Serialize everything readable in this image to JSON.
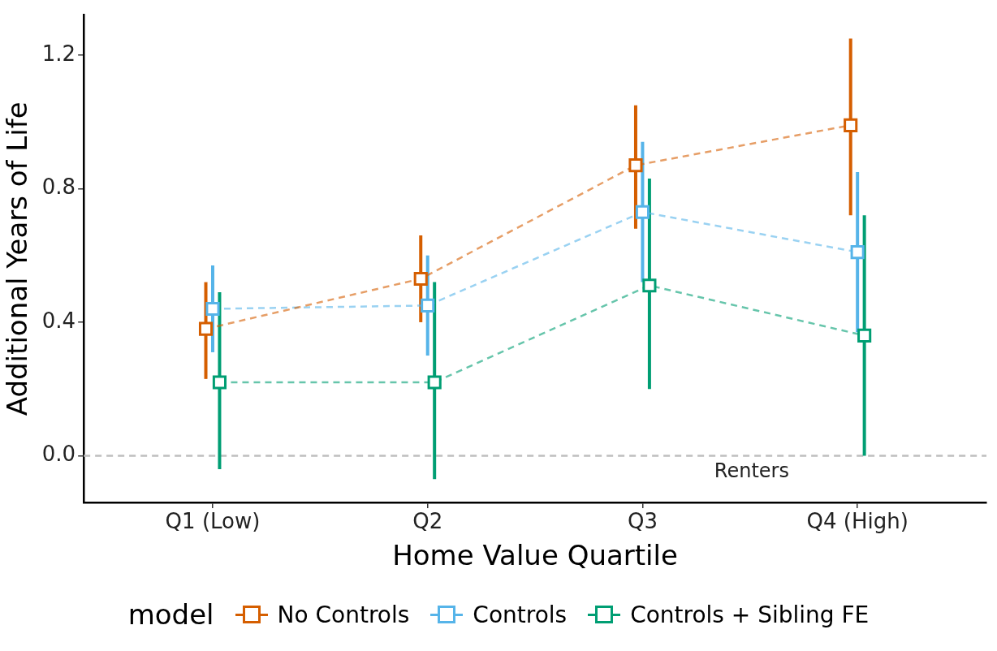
{
  "chart_data": {
    "type": "line",
    "xlabel": "Home Value Quartile",
    "ylabel": "Additional Years of Life",
    "legend_title": "model",
    "categories": [
      "Q1 (Low)",
      "Q2",
      "Q3",
      "Q4 (High)"
    ],
    "series": [
      {
        "name": "No Controls",
        "color": "#d55e00",
        "values": [
          0.38,
          0.53,
          0.87,
          0.99
        ],
        "errors": [
          [
            0.23,
            0.52
          ],
          [
            0.4,
            0.66
          ],
          [
            0.68,
            1.05
          ],
          [
            0.72,
            1.25
          ]
        ]
      },
      {
        "name": "Controls",
        "color": "#56b4e9",
        "values": [
          0.44,
          0.45,
          0.73,
          0.61
        ],
        "errors": [
          [
            0.31,
            0.57
          ],
          [
            0.3,
            0.6
          ],
          [
            0.52,
            0.94
          ],
          [
            0.37,
            0.85
          ]
        ]
      },
      {
        "name": "Controls + Sibling FE",
        "color": "#009e73",
        "values": [
          0.22,
          0.22,
          0.51,
          0.36
        ],
        "errors": [
          [
            -0.04,
            0.49
          ],
          [
            -0.07,
            0.52
          ],
          [
            0.2,
            0.83
          ],
          [
            0.0,
            0.72
          ]
        ]
      }
    ],
    "ylim": [
      -0.14,
      1.32
    ],
    "yticks": [
      {
        "value": 0,
        "label": "0.0"
      },
      {
        "value": 0.4,
        "label": "0.4"
      },
      {
        "value": 0.8,
        "label": "0.8"
      },
      {
        "value": 1.2,
        "label": "1.2"
      }
    ],
    "ref_lines": [
      {
        "axis": "y",
        "value": 0,
        "label": "Renters",
        "color": "#bebebe",
        "line_style": "dashed"
      }
    ],
    "grid": false,
    "legend": "bottom",
    "marker": "square",
    "line_style": "dashed"
  }
}
